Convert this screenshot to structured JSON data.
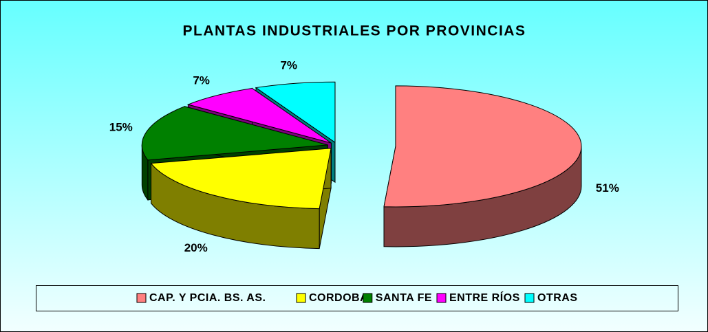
{
  "chart_data": {
    "type": "pie",
    "title": "PLANTAS INDUSTRIALES POR PROVINCIAS",
    "categories": [
      "CAP. Y PCIA. BS. AS.",
      "CORDOBA",
      "SANTA FE",
      "ENTRE RÍOS",
      "OTRAS"
    ],
    "values": [
      51,
      20,
      15,
      7,
      7
    ],
    "value_labels": [
      "51%",
      "20%",
      "15%",
      "7%",
      "7%"
    ],
    "colors": [
      "#ff8080",
      "#ffff00",
      "#008000",
      "#ff00ff",
      "#00ffff"
    ],
    "legend": "bottom",
    "three_d": true
  }
}
